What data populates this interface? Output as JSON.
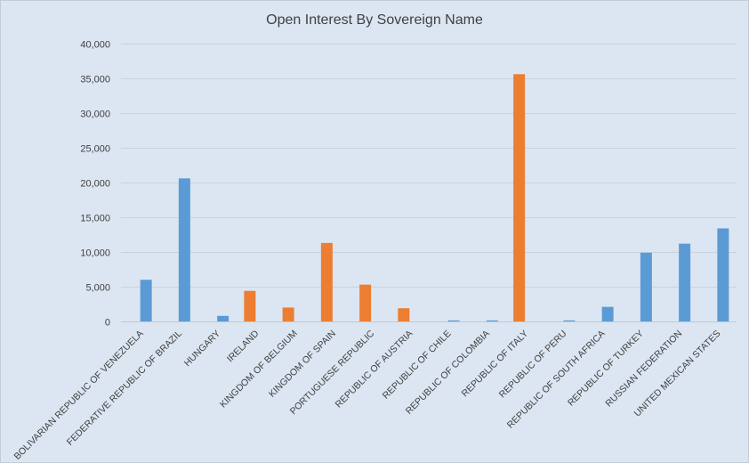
{
  "chart_data": {
    "type": "bar",
    "title": "Open Interest By Sovereign Name",
    "xlabel": "",
    "ylabel": "",
    "ylim": [
      0,
      40000
    ],
    "yticks": [
      0,
      5000,
      10000,
      15000,
      20000,
      25000,
      30000,
      35000,
      40000
    ],
    "ytick_labels": [
      "0",
      "5,000",
      "10,000",
      "15,000",
      "20,000",
      "25,000",
      "30,000",
      "35,000",
      "40,000"
    ],
    "grid": true,
    "legend": "none",
    "colors": {
      "blue": "#5b9bd5",
      "orange": "#ed7d31"
    },
    "categories": [
      "BOLIVARIAN REPUBLIC OF VENEZUELA",
      "FEDERATIVE REPUBLIC OF BRAZIL",
      "HUNGARY",
      "IRELAND",
      "KINGDOM OF BELGIUM",
      "KINGDOM OF SPAIN",
      "PORTUGUESE REPUBLIC",
      "REPUBLIC OF AUSTRIA",
      "REPUBLIC OF CHILE",
      "REPUBLIC OF COLOMBIA",
      "REPUBLIC OF ITALY",
      "REPUBLIC OF PERU",
      "REPUBLIC OF SOUTH AFRICA",
      "REPUBLIC OF TURKEY",
      "RUSSIAN FEDERATION",
      "UNITED MEXICAN STATES"
    ],
    "series": [
      {
        "color": "blue",
        "values": [
          6000,
          20600,
          800,
          0,
          0,
          0,
          0,
          0,
          150,
          150,
          0,
          150,
          2100,
          9900,
          11200,
          13400
        ]
      },
      {
        "color": "orange",
        "values": [
          0,
          0,
          0,
          4400,
          2000,
          11300,
          5300,
          1900,
          0,
          0,
          35600,
          0,
          0,
          0,
          0,
          0
        ]
      }
    ]
  }
}
